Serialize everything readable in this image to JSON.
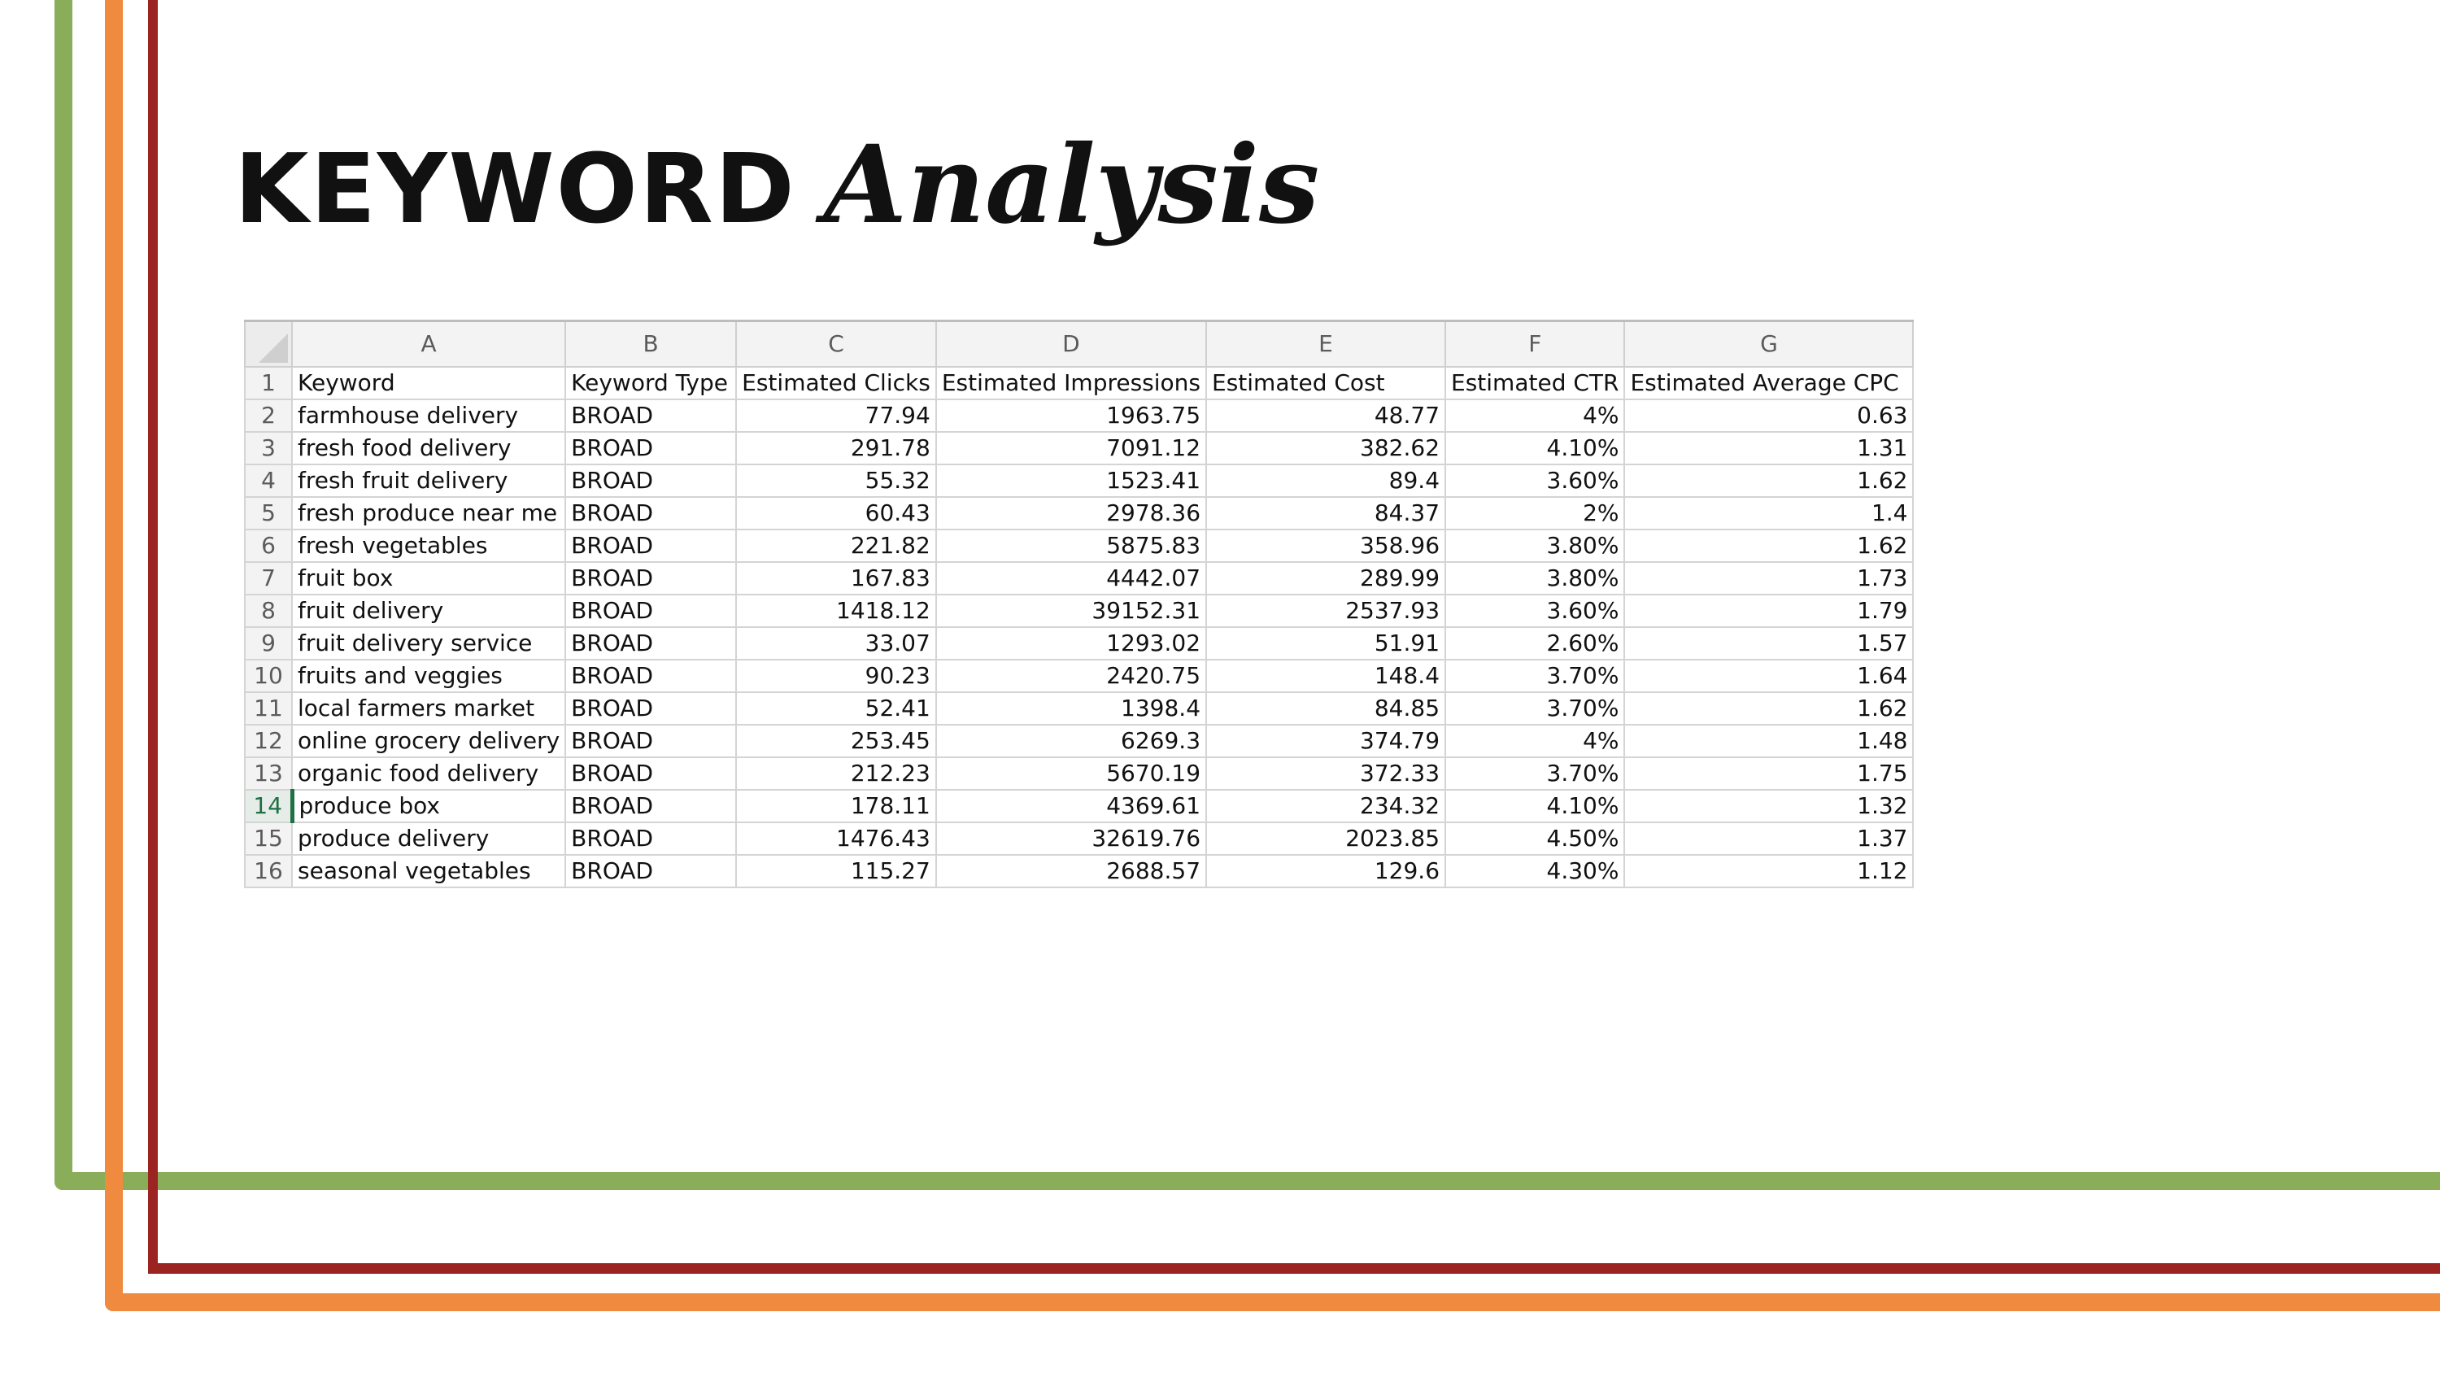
{
  "title": {
    "main": "KEYWORD",
    "script": "Analysis"
  },
  "colors": {
    "green": "#8aad5a",
    "orange": "#ef8a3f",
    "red": "#9b2321",
    "active_row": "#1e7145"
  },
  "spreadsheet": {
    "column_letters": [
      "A",
      "B",
      "C",
      "D",
      "E",
      "F",
      "G"
    ],
    "active_row": 14,
    "rows": [
      {
        "n": "1",
        "cells": [
          "Keyword",
          "Keyword Type",
          "Estimated Clicks",
          "Estimated Impressions",
          "Estimated Cost",
          "Estimated CTR",
          "Estimated Average CPC"
        ]
      },
      {
        "n": "2",
        "cells": [
          "farmhouse delivery",
          "BROAD",
          "77.94",
          "1963.75",
          "48.77",
          "4%",
          "0.63"
        ]
      },
      {
        "n": "3",
        "cells": [
          "fresh food delivery",
          "BROAD",
          "291.78",
          "7091.12",
          "382.62",
          "4.10%",
          "1.31"
        ]
      },
      {
        "n": "4",
        "cells": [
          "fresh fruit delivery",
          "BROAD",
          "55.32",
          "1523.41",
          "89.4",
          "3.60%",
          "1.62"
        ]
      },
      {
        "n": "5",
        "cells": [
          "fresh produce near me",
          "BROAD",
          "60.43",
          "2978.36",
          "84.37",
          "2%",
          "1.4"
        ]
      },
      {
        "n": "6",
        "cells": [
          "fresh vegetables",
          "BROAD",
          "221.82",
          "5875.83",
          "358.96",
          "3.80%",
          "1.62"
        ]
      },
      {
        "n": "7",
        "cells": [
          "fruit box",
          "BROAD",
          "167.83",
          "4442.07",
          "289.99",
          "3.80%",
          "1.73"
        ]
      },
      {
        "n": "8",
        "cells": [
          "fruit delivery",
          "BROAD",
          "1418.12",
          "39152.31",
          "2537.93",
          "3.60%",
          "1.79"
        ]
      },
      {
        "n": "9",
        "cells": [
          "fruit delivery service",
          "BROAD",
          "33.07",
          "1293.02",
          "51.91",
          "2.60%",
          "1.57"
        ]
      },
      {
        "n": "10",
        "cells": [
          "fruits and veggies",
          "BROAD",
          "90.23",
          "2420.75",
          "148.4",
          "3.70%",
          "1.64"
        ]
      },
      {
        "n": "11",
        "cells": [
          "local farmers market",
          "BROAD",
          "52.41",
          "1398.4",
          "84.85",
          "3.70%",
          "1.62"
        ]
      },
      {
        "n": "12",
        "cells": [
          "online grocery delivery",
          "BROAD",
          "253.45",
          "6269.3",
          "374.79",
          "4%",
          "1.48"
        ]
      },
      {
        "n": "13",
        "cells": [
          "organic food delivery",
          "BROAD",
          "212.23",
          "5670.19",
          "372.33",
          "3.70%",
          "1.75"
        ]
      },
      {
        "n": "14",
        "cells": [
          "produce box",
          "BROAD",
          "178.11",
          "4369.61",
          "234.32",
          "4.10%",
          "1.32"
        ]
      },
      {
        "n": "15",
        "cells": [
          "produce delivery",
          "BROAD",
          "1476.43",
          "32619.76",
          "2023.85",
          "4.50%",
          "1.37"
        ]
      },
      {
        "n": "16",
        "cells": [
          "seasonal vegetables",
          "BROAD",
          "115.27",
          "2688.57",
          "129.6",
          "4.30%",
          "1.12"
        ]
      }
    ]
  }
}
